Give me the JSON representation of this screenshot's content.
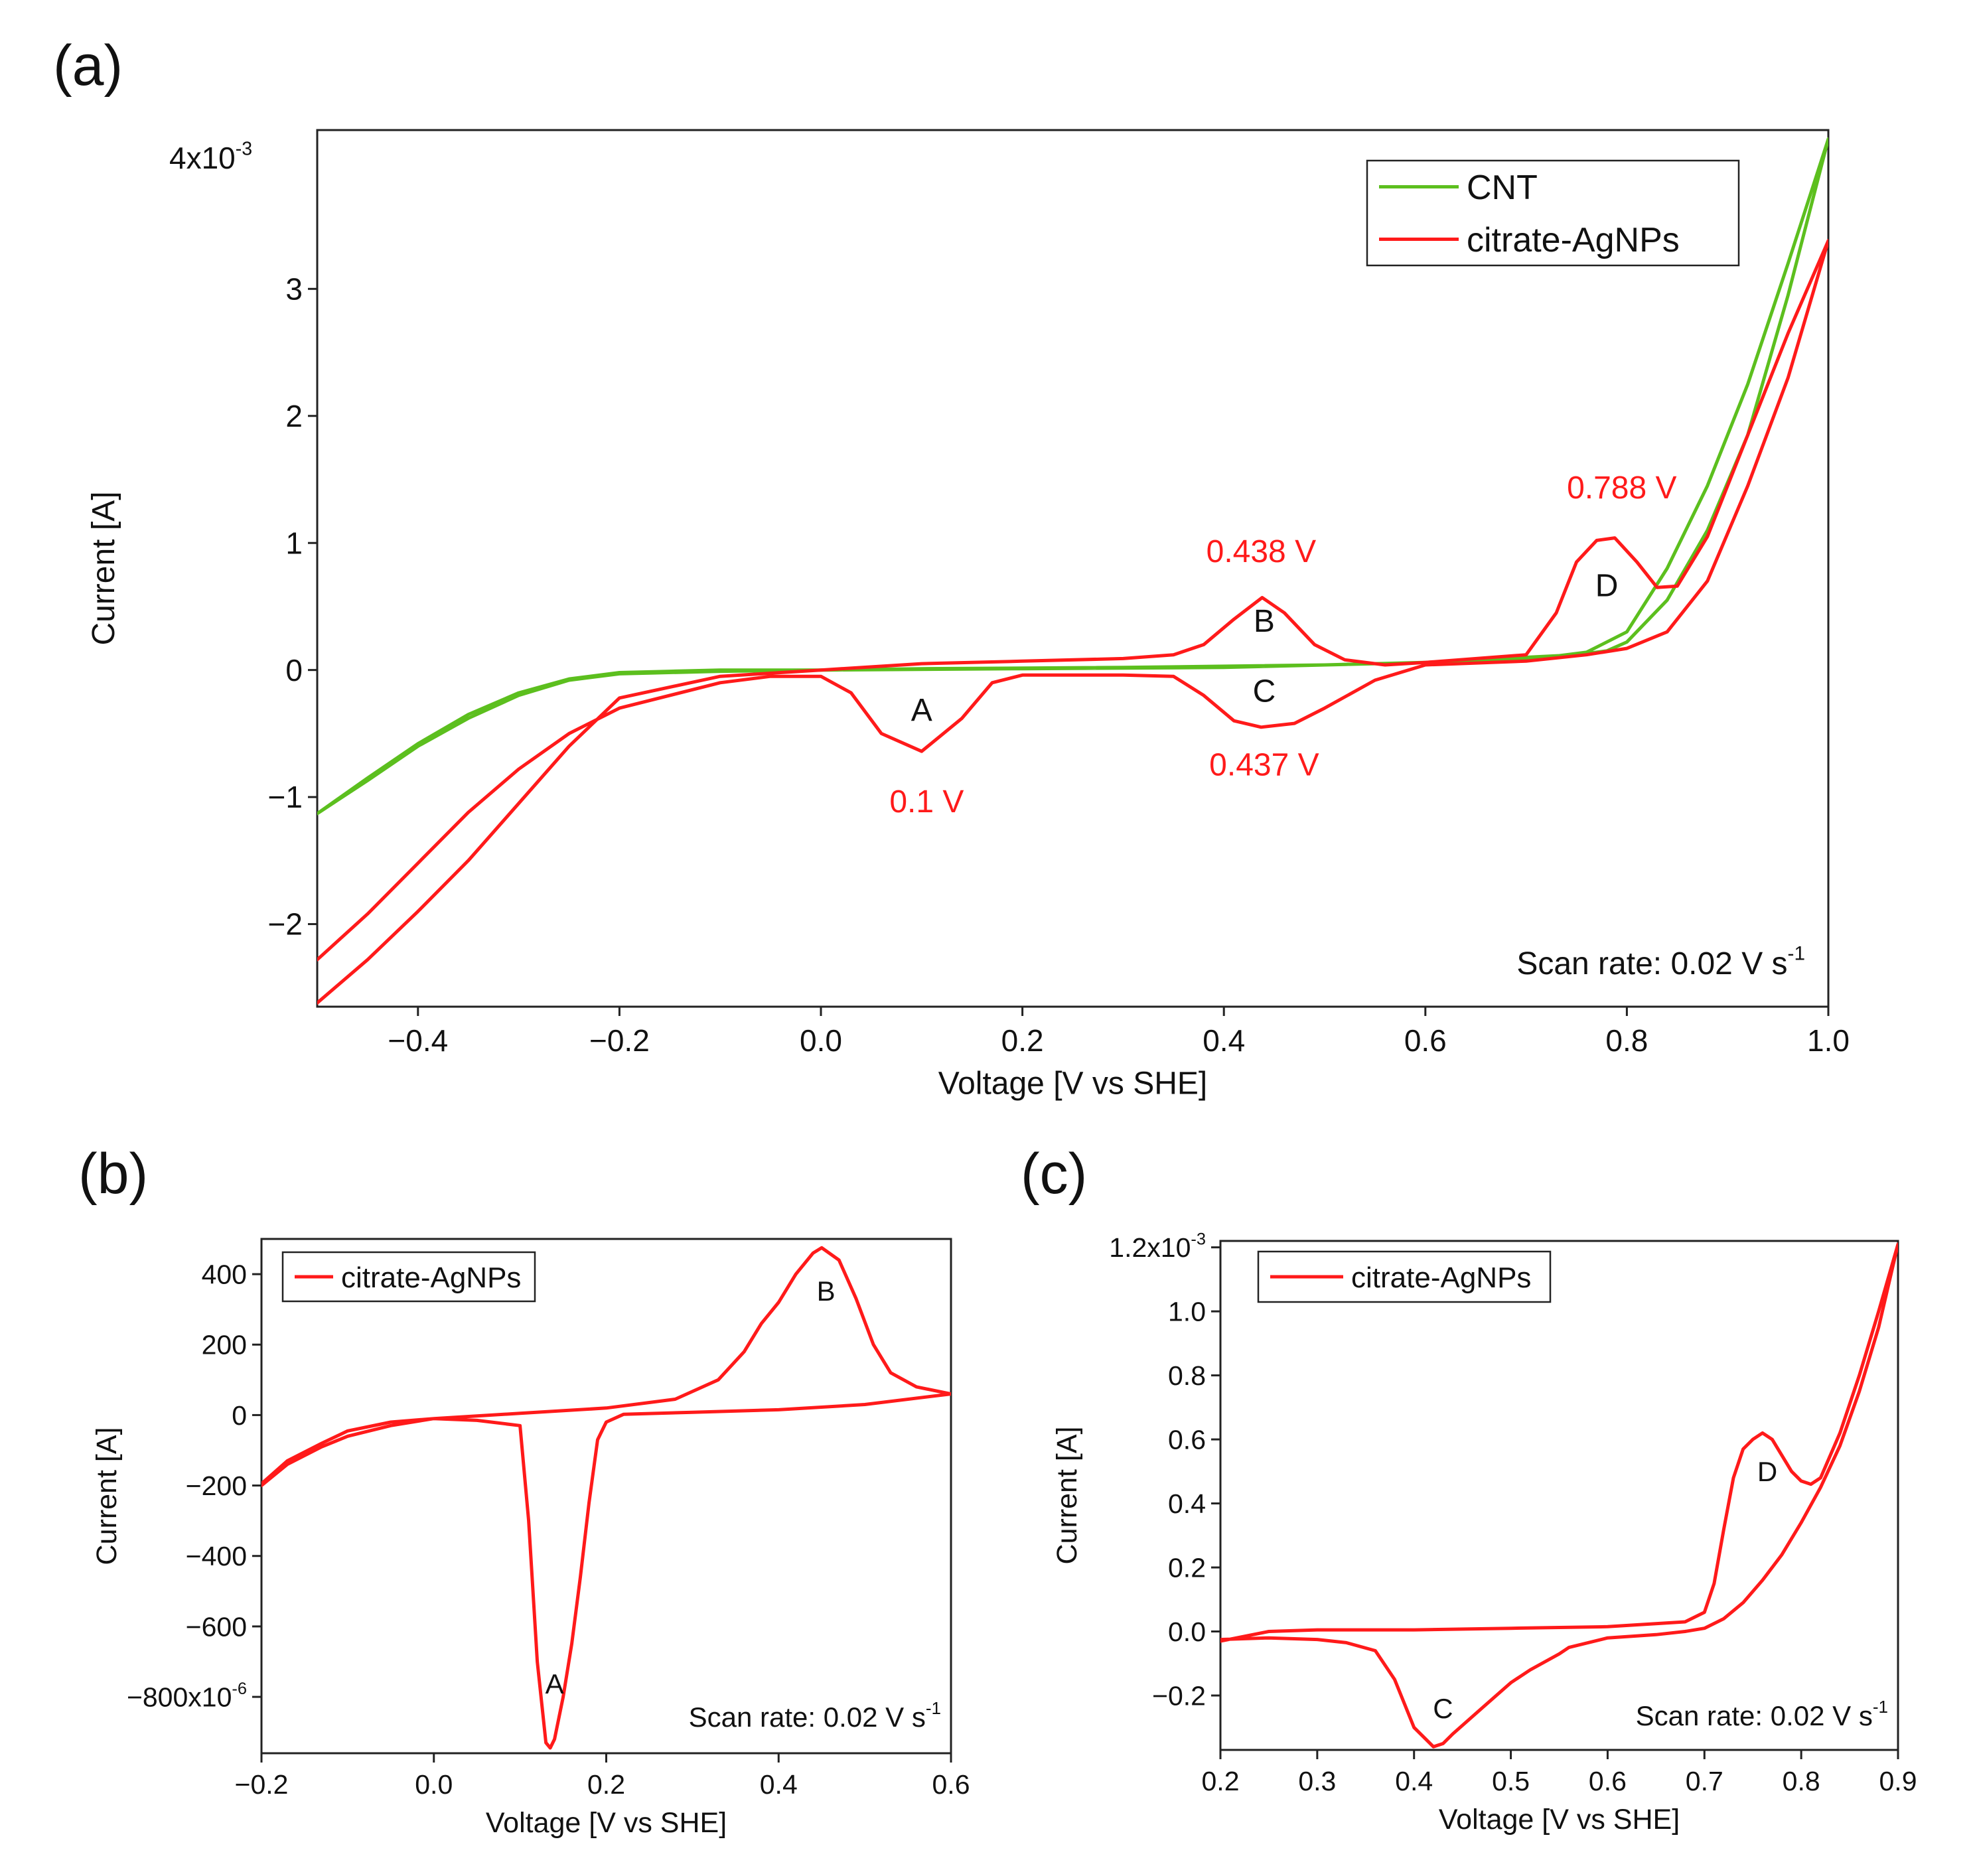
{
  "colors": {
    "cnt": "#5cbf1e",
    "agnp": "#ff1a1a",
    "axis": "#222222",
    "text": "#111111"
  },
  "chart_data": [
    {
      "panel_label": "(a)",
      "type": "line",
      "xlabel": "Voltage [V vs SHE]",
      "ylabel": "Current [A]",
      "xlim": [
        -0.5,
        1.0
      ],
      "ylim": [
        -2.65,
        4.25
      ],
      "y_multiplier": "4x10",
      "y_multiplier_exp": "-3",
      "x_ticks": [
        {
          "value": -0.4,
          "label": "−0.4"
        },
        {
          "value": -0.2,
          "label": "−0.2"
        },
        {
          "value": 0.0,
          "label": "0.0"
        },
        {
          "value": 0.2,
          "label": "0.2"
        },
        {
          "value": 0.4,
          "label": "0.4"
        },
        {
          "value": 0.6,
          "label": "0.6"
        },
        {
          "value": 0.8,
          "label": "0.8"
        },
        {
          "value": 1.0,
          "label": "1.0"
        }
      ],
      "y_ticks": [
        {
          "value": -2,
          "label": "−2"
        },
        {
          "value": -1,
          "label": "−1"
        },
        {
          "value": 0,
          "label": "0"
        },
        {
          "value": 1,
          "label": "1"
        },
        {
          "value": 2,
          "label": "2"
        },
        {
          "value": 3,
          "label": "3"
        }
      ],
      "legend": {
        "position": "top-right",
        "entries": [
          "CNT",
          "citrate-AgNPs"
        ]
      },
      "annotation": {
        "text": "Scan rate: 0.02 V s",
        "sup": "-1"
      },
      "series": [
        {
          "name": "CNT",
          "color": "#5cbf1e",
          "x": [
            -0.5,
            -0.45,
            -0.4,
            -0.35,
            -0.3,
            -0.25,
            -0.2,
            -0.15,
            -0.1,
            0.0,
            0.2,
            0.4,
            0.6,
            0.7,
            0.75,
            0.78,
            0.8,
            0.84,
            0.88,
            0.92,
            0.96,
            1.0,
            0.96,
            0.92,
            0.88,
            0.84,
            0.8,
            0.76,
            0.7,
            0.5,
            0.3,
            0.1,
            -0.1,
            -0.2,
            -0.25,
            -0.3,
            -0.35,
            -0.4,
            -0.45,
            -0.5
          ],
          "y": [
            -1.13,
            -0.85,
            -0.58,
            -0.35,
            -0.18,
            -0.07,
            -0.02,
            -0.01,
            0.0,
            0.0,
            0.01,
            0.02,
            0.06,
            0.1,
            0.12,
            0.15,
            0.22,
            0.55,
            1.1,
            1.85,
            2.95,
            4.18,
            3.2,
            2.25,
            1.45,
            0.8,
            0.3,
            0.14,
            0.08,
            0.04,
            0.02,
            0.01,
            -0.01,
            -0.03,
            -0.08,
            -0.2,
            -0.38,
            -0.6,
            -0.87,
            -1.13
          ]
        },
        {
          "name": "citrate-AgNPs",
          "color": "#ff1a1a",
          "x": [
            -0.5,
            -0.45,
            -0.4,
            -0.35,
            -0.3,
            -0.25,
            -0.2,
            -0.1,
            0.0,
            0.1,
            0.2,
            0.3,
            0.35,
            0.38,
            0.41,
            0.438,
            0.46,
            0.49,
            0.52,
            0.56,
            0.6,
            0.7,
            0.73,
            0.75,
            0.77,
            0.788,
            0.81,
            0.83,
            0.85,
            0.88,
            0.92,
            0.96,
            1.0,
            0.96,
            0.92,
            0.88,
            0.84,
            0.8,
            0.76,
            0.7,
            0.6,
            0.55,
            0.5,
            0.47,
            0.437,
            0.41,
            0.38,
            0.35,
            0.3,
            0.25,
            0.2,
            0.17,
            0.14,
            0.1,
            0.06,
            0.03,
            0.0,
            -0.05,
            -0.1,
            -0.2,
            -0.25,
            -0.3,
            -0.35,
            -0.4,
            -0.45,
            -0.5
          ],
          "y": [
            -2.62,
            -2.28,
            -1.9,
            -1.5,
            -1.05,
            -0.6,
            -0.22,
            -0.05,
            0.0,
            0.05,
            0.07,
            0.09,
            0.12,
            0.2,
            0.4,
            0.57,
            0.45,
            0.2,
            0.08,
            0.04,
            0.06,
            0.12,
            0.45,
            0.85,
            1.02,
            1.04,
            0.85,
            0.65,
            0.66,
            1.05,
            1.85,
            2.65,
            3.38,
            2.3,
            1.45,
            0.7,
            0.3,
            0.17,
            0.12,
            0.07,
            0.04,
            -0.08,
            -0.3,
            -0.42,
            -0.45,
            -0.4,
            -0.2,
            -0.05,
            -0.04,
            -0.04,
            -0.04,
            -0.1,
            -0.38,
            -0.64,
            -0.5,
            -0.18,
            -0.05,
            -0.05,
            -0.1,
            -0.3,
            -0.5,
            -0.78,
            -1.12,
            -1.52,
            -1.92,
            -2.28
          ]
        }
      ],
      "labels": [
        {
          "text": "A",
          "x": 0.1,
          "y": -0.4,
          "color": "#111111"
        },
        {
          "text": "B",
          "x": 0.44,
          "y": 0.3,
          "color": "#111111"
        },
        {
          "text": "C",
          "x": 0.44,
          "y": -0.25,
          "color": "#111111"
        },
        {
          "text": "D",
          "x": 0.78,
          "y": 0.58,
          "color": "#111111"
        },
        {
          "text": "0.1 V",
          "x": 0.105,
          "y": -1.12,
          "color": "#ff1a1a"
        },
        {
          "text": "0.438 V",
          "x": 0.437,
          "y": 0.85,
          "color": "#ff1a1a"
        },
        {
          "text": "0.437 V",
          "x": 0.44,
          "y": -0.83,
          "color": "#ff1a1a"
        },
        {
          "text": "0.788 V",
          "x": 0.795,
          "y": 1.35,
          "color": "#ff1a1a"
        }
      ]
    },
    {
      "panel_label": "(b)",
      "type": "line",
      "xlabel": "Voltage [V vs SHE]",
      "ylabel": "Current [A]",
      "xlim": [
        -0.2,
        0.6
      ],
      "ylim": [
        -960,
        500
      ],
      "x_ticks": [
        {
          "value": -0.2,
          "label": "−0.2"
        },
        {
          "value": 0.0,
          "label": "0.0"
        },
        {
          "value": 0.2,
          "label": "0.2"
        },
        {
          "value": 0.4,
          "label": "0.4"
        },
        {
          "value": 0.6,
          "label": "0.6"
        }
      ],
      "y_ticks": [
        {
          "value": -800,
          "label": "−800x10",
          "sup": "-6"
        },
        {
          "value": -600,
          "label": "−600"
        },
        {
          "value": -400,
          "label": "−400"
        },
        {
          "value": -200,
          "label": "−200"
        },
        {
          "value": 0,
          "label": "0"
        },
        {
          "value": 200,
          "label": "200"
        },
        {
          "value": 400,
          "label": "400"
        }
      ],
      "legend": {
        "position": "top-left",
        "entries": [
          "citrate-AgNPs"
        ]
      },
      "annotation": {
        "text": "Scan rate: 0.02 V s",
        "sup": "-1"
      },
      "series": [
        {
          "name": "citrate-AgNPs",
          "color": "#ff1a1a",
          "x": [
            -0.2,
            -0.17,
            -0.13,
            -0.1,
            -0.05,
            0.0,
            0.1,
            0.2,
            0.28,
            0.33,
            0.36,
            0.38,
            0.4,
            0.42,
            0.44,
            0.45,
            0.47,
            0.49,
            0.51,
            0.53,
            0.56,
            0.6,
            0.5,
            0.4,
            0.3,
            0.22,
            0.2,
            0.19,
            0.18,
            0.17,
            0.16,
            0.15,
            0.14,
            0.135,
            0.13,
            0.12,
            0.11,
            0.1,
            0.05,
            0.0,
            -0.05,
            -0.1,
            -0.13,
            -0.17,
            -0.2
          ],
          "y": [
            -200,
            -140,
            -90,
            -60,
            -30,
            -10,
            5,
            20,
            45,
            100,
            180,
            260,
            320,
            400,
            460,
            475,
            440,
            330,
            200,
            120,
            80,
            60,
            30,
            15,
            8,
            2,
            -20,
            -70,
            -250,
            -460,
            -650,
            -800,
            -920,
            -945,
            -930,
            -700,
            -300,
            -30,
            -15,
            -10,
            -20,
            -45,
            -80,
            -130,
            -195
          ]
        }
      ],
      "labels": [
        {
          "text": "A",
          "x": 0.14,
          "y": -790,
          "color": "#111111"
        },
        {
          "text": "B",
          "x": 0.455,
          "y": 325,
          "color": "#111111"
        }
      ]
    },
    {
      "panel_label": "(c)",
      "type": "line",
      "xlabel": "Voltage [V vs SHE]",
      "ylabel": "Current [A]",
      "xlim": [
        0.2,
        0.9
      ],
      "ylim": [
        -0.37,
        1.22
      ],
      "x_ticks": [
        {
          "value": 0.2,
          "label": "0.2"
        },
        {
          "value": 0.3,
          "label": "0.3"
        },
        {
          "value": 0.4,
          "label": "0.4"
        },
        {
          "value": 0.5,
          "label": "0.5"
        },
        {
          "value": 0.6,
          "label": "0.6"
        },
        {
          "value": 0.7,
          "label": "0.7"
        },
        {
          "value": 0.8,
          "label": "0.8"
        },
        {
          "value": 0.9,
          "label": "0.9"
        }
      ],
      "y_ticks": [
        {
          "value": -0.2,
          "label": "−0.2"
        },
        {
          "value": 0.0,
          "label": "0.0"
        },
        {
          "value": 0.2,
          "label": "0.2"
        },
        {
          "value": 0.4,
          "label": "0.4"
        },
        {
          "value": 0.6,
          "label": "0.6"
        },
        {
          "value": 0.8,
          "label": "0.8"
        },
        {
          "value": 1.0,
          "label": "1.0"
        },
        {
          "value": 1.2,
          "label": "1.2x10",
          "sup": "-3"
        }
      ],
      "legend": {
        "position": "top-left",
        "entries": [
          "citrate-AgNPs"
        ]
      },
      "annotation": {
        "text": "Scan rate: 0.02 V s",
        "sup": "-1"
      },
      "series": [
        {
          "name": "citrate-AgNPs",
          "color": "#ff1a1a",
          "x": [
            0.2,
            0.25,
            0.3,
            0.4,
            0.5,
            0.6,
            0.68,
            0.7,
            0.71,
            0.72,
            0.73,
            0.74,
            0.75,
            0.76,
            0.77,
            0.78,
            0.79,
            0.8,
            0.81,
            0.82,
            0.84,
            0.86,
            0.88,
            0.9,
            0.88,
            0.86,
            0.84,
            0.82,
            0.8,
            0.78,
            0.76,
            0.74,
            0.72,
            0.7,
            0.68,
            0.65,
            0.6,
            0.56,
            0.55,
            0.52,
            0.5,
            0.47,
            0.44,
            0.43,
            0.42,
            0.4,
            0.38,
            0.36,
            0.33,
            0.3,
            0.25,
            0.2
          ],
          "y": [
            -0.03,
            0.0,
            0.005,
            0.005,
            0.01,
            0.015,
            0.03,
            0.06,
            0.15,
            0.32,
            0.48,
            0.57,
            0.6,
            0.62,
            0.6,
            0.55,
            0.5,
            0.47,
            0.46,
            0.48,
            0.62,
            0.8,
            1.0,
            1.21,
            0.95,
            0.75,
            0.58,
            0.45,
            0.34,
            0.24,
            0.16,
            0.09,
            0.04,
            0.01,
            0.0,
            -0.01,
            -0.02,
            -0.05,
            -0.07,
            -0.12,
            -0.16,
            -0.24,
            -0.32,
            -0.35,
            -0.36,
            -0.3,
            -0.15,
            -0.06,
            -0.035,
            -0.025,
            -0.02,
            -0.025
          ]
        }
      ],
      "labels": [
        {
          "text": "C",
          "x": 0.43,
          "y": -0.27,
          "color": "#111111"
        },
        {
          "text": "D",
          "x": 0.765,
          "y": 0.47,
          "color": "#111111"
        }
      ]
    }
  ]
}
